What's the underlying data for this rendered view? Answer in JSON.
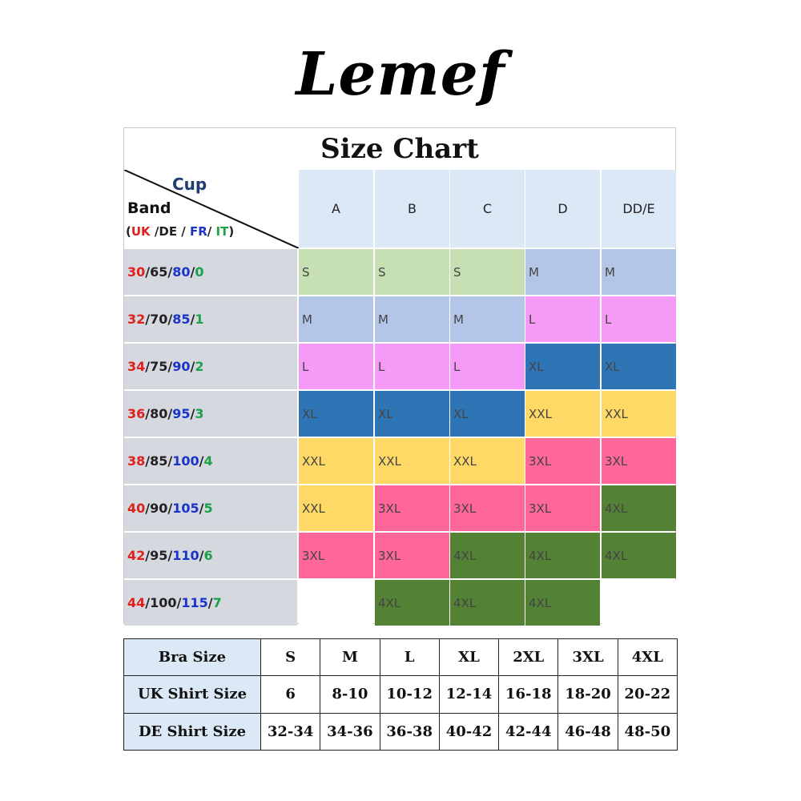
{
  "brand": "Lemef",
  "size_chart": {
    "title": "Size Chart",
    "corner": {
      "cup_label": "Cup",
      "band_label": "Band",
      "systems": {
        "open": "(",
        "uk": "UK",
        "de": " /DE / ",
        "fr": "FR",
        "slash": "/ ",
        "it": "IT",
        "close": ")"
      }
    },
    "cups": [
      "A",
      "B",
      "C",
      "D",
      "DD/E"
    ],
    "bands": [
      {
        "uk": "30",
        "de": "65",
        "fr": "80",
        "it": "0"
      },
      {
        "uk": "32",
        "de": "70",
        "fr": "85",
        "it": "1"
      },
      {
        "uk": "34",
        "de": "75",
        "fr": "90",
        "it": "2"
      },
      {
        "uk": "36",
        "de": "80",
        "fr": "95",
        "it": "3"
      },
      {
        "uk": "38",
        "de": "85",
        "fr": "100",
        "it": "4"
      },
      {
        "uk": "40",
        "de": "90",
        "fr": "105",
        "it": "5"
      },
      {
        "uk": "42",
        "de": "95",
        "fr": "110",
        "it": "6"
      },
      {
        "uk": "44",
        "de": "100",
        "fr": "115",
        "it": "7"
      }
    ],
    "sizes": [
      [
        "S",
        "S",
        "S",
        "M",
        "M"
      ],
      [
        "M",
        "M",
        "M",
        "L",
        "L"
      ],
      [
        "L",
        "L",
        "L",
        "XL",
        "XL"
      ],
      [
        "XL",
        "XL",
        "XL",
        "XXL",
        "XXL"
      ],
      [
        "XXL",
        "XXL",
        "XXL",
        "3XL",
        "3XL"
      ],
      [
        "XXL",
        "3XL",
        "3XL",
        "3XL",
        "4XL"
      ],
      [
        "3XL",
        "3XL",
        "4XL",
        "4XL",
        "4XL"
      ],
      [
        "",
        "4XL",
        "4XL",
        "4XL",
        ""
      ]
    ],
    "size_colors": {
      "S": "#c6e0b4",
      "M": "#b4c6e7",
      "L": "#f59af7",
      "XL": "#2e75b6",
      "XXL": "#ffd966",
      "3XL": "#ff6699",
      "4XL": "#548235"
    },
    "header_color": "#dbe8f5",
    "band_color": "#d5d9df",
    "separator": " / "
  },
  "shirt_table": {
    "rows": [
      {
        "label": "Bra Size",
        "values": [
          "S",
          "M",
          "L",
          "XL",
          "2XL",
          "3XL",
          "4XL"
        ]
      },
      {
        "label": "UK Shirt Size",
        "values": [
          "6",
          "8-10",
          "10-12",
          "12-14",
          "16-18",
          "18-20",
          "20-22"
        ]
      },
      {
        "label": "DE Shirt Size",
        "values": [
          "32-34",
          "34-36",
          "36-38",
          "40-42",
          "42-44",
          "46-48",
          "48-50"
        ]
      }
    ]
  }
}
